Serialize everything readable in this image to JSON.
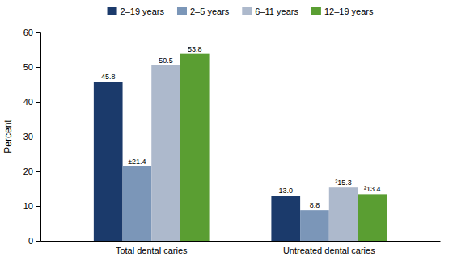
{
  "chart_data": {
    "type": "bar",
    "categories": [
      "Total dental caries",
      "Untreated dental caries"
    ],
    "series": [
      {
        "name": "2–19 years",
        "color": "#1b3a6b",
        "values": [
          45.8,
          13.0
        ],
        "value_labels": [
          "45.8",
          "13.0"
        ]
      },
      {
        "name": "2–5 years",
        "color": "#7b96b8",
        "values": [
          21.4,
          8.8
        ],
        "value_labels": [
          "±21.4",
          "8.8"
        ]
      },
      {
        "name": "6–11 years",
        "color": "#adb9cc",
        "values": [
          50.5,
          15.3
        ],
        "value_labels": [
          "50.5",
          "²15.3"
        ]
      },
      {
        "name": "12–19 years",
        "color": "#5a9e32",
        "values": [
          53.8,
          13.4
        ],
        "value_labels": [
          "53.8",
          "²13.4"
        ]
      }
    ],
    "ylabel": "Percent",
    "ylim": [
      0,
      60
    ],
    "yticks": [
      0,
      10,
      20,
      30,
      40,
      50,
      60
    ],
    "data_labels": true,
    "legend": "top",
    "grid": false
  }
}
